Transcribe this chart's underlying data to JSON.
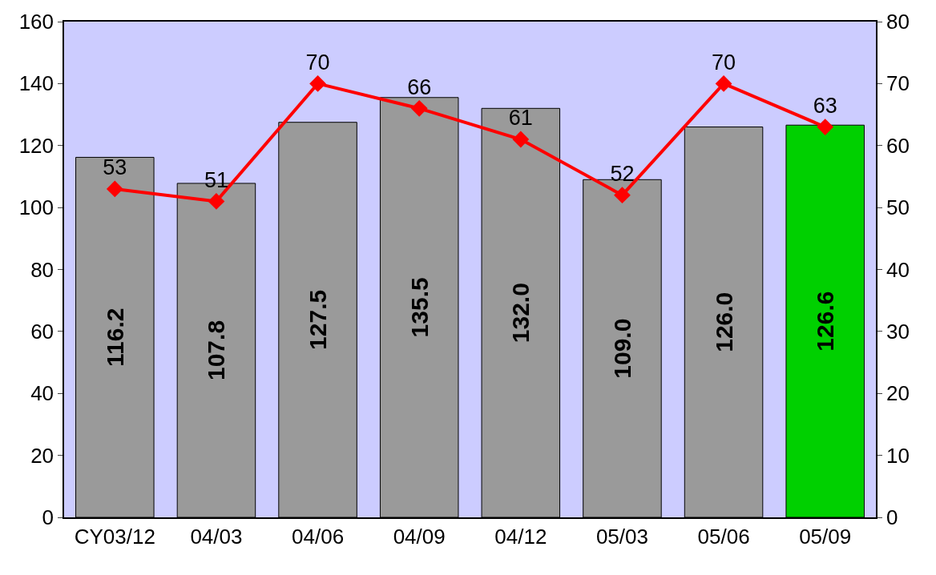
{
  "chart_data": {
    "type": "bar",
    "categories": [
      "CY03/12",
      "04/03",
      "04/06",
      "04/09",
      "04/12",
      "05/03",
      "05/06",
      "05/09"
    ],
    "series": [
      {
        "colors": [
          "#9a9a9a",
          "#9a9a9a",
          "#9a9a9a",
          "#9a9a9a",
          "#9a9a9a",
          "#9a9a9a",
          "#9a9a9a",
          "#00d000"
        ],
        "values": [
          116.2,
          107.8,
          127.5,
          135.5,
          132.0,
          109.0,
          126.0,
          126.6
        ],
        "value_labels": [
          "116.2",
          "107.8",
          "127.5",
          "135.5",
          "132.0",
          "109.0",
          "126.0",
          "126.6"
        ]
      },
      {
        "type": "line",
        "axis": "y2",
        "color": "#ff0000",
        "marker": "diamond",
        "line_style": "solid",
        "values": [
          53,
          51,
          70,
          66,
          61,
          52,
          70,
          63
        ],
        "value_labels": [
          "53",
          "51",
          "70",
          "66",
          "61",
          "52",
          "70",
          "63"
        ]
      }
    ],
    "ylim": [
      0,
      160
    ],
    "yticks": [
      0,
      20,
      40,
      60,
      80,
      100,
      120,
      140,
      160
    ],
    "y2lim": [
      0,
      80
    ],
    "y2ticks": [
      0,
      10,
      20,
      30,
      40,
      50,
      60,
      70,
      80
    ],
    "grid": false,
    "bands": [
      {
        "axis": "y",
        "from": 0,
        "to": 160,
        "color": "#ccccff"
      }
    ]
  }
}
